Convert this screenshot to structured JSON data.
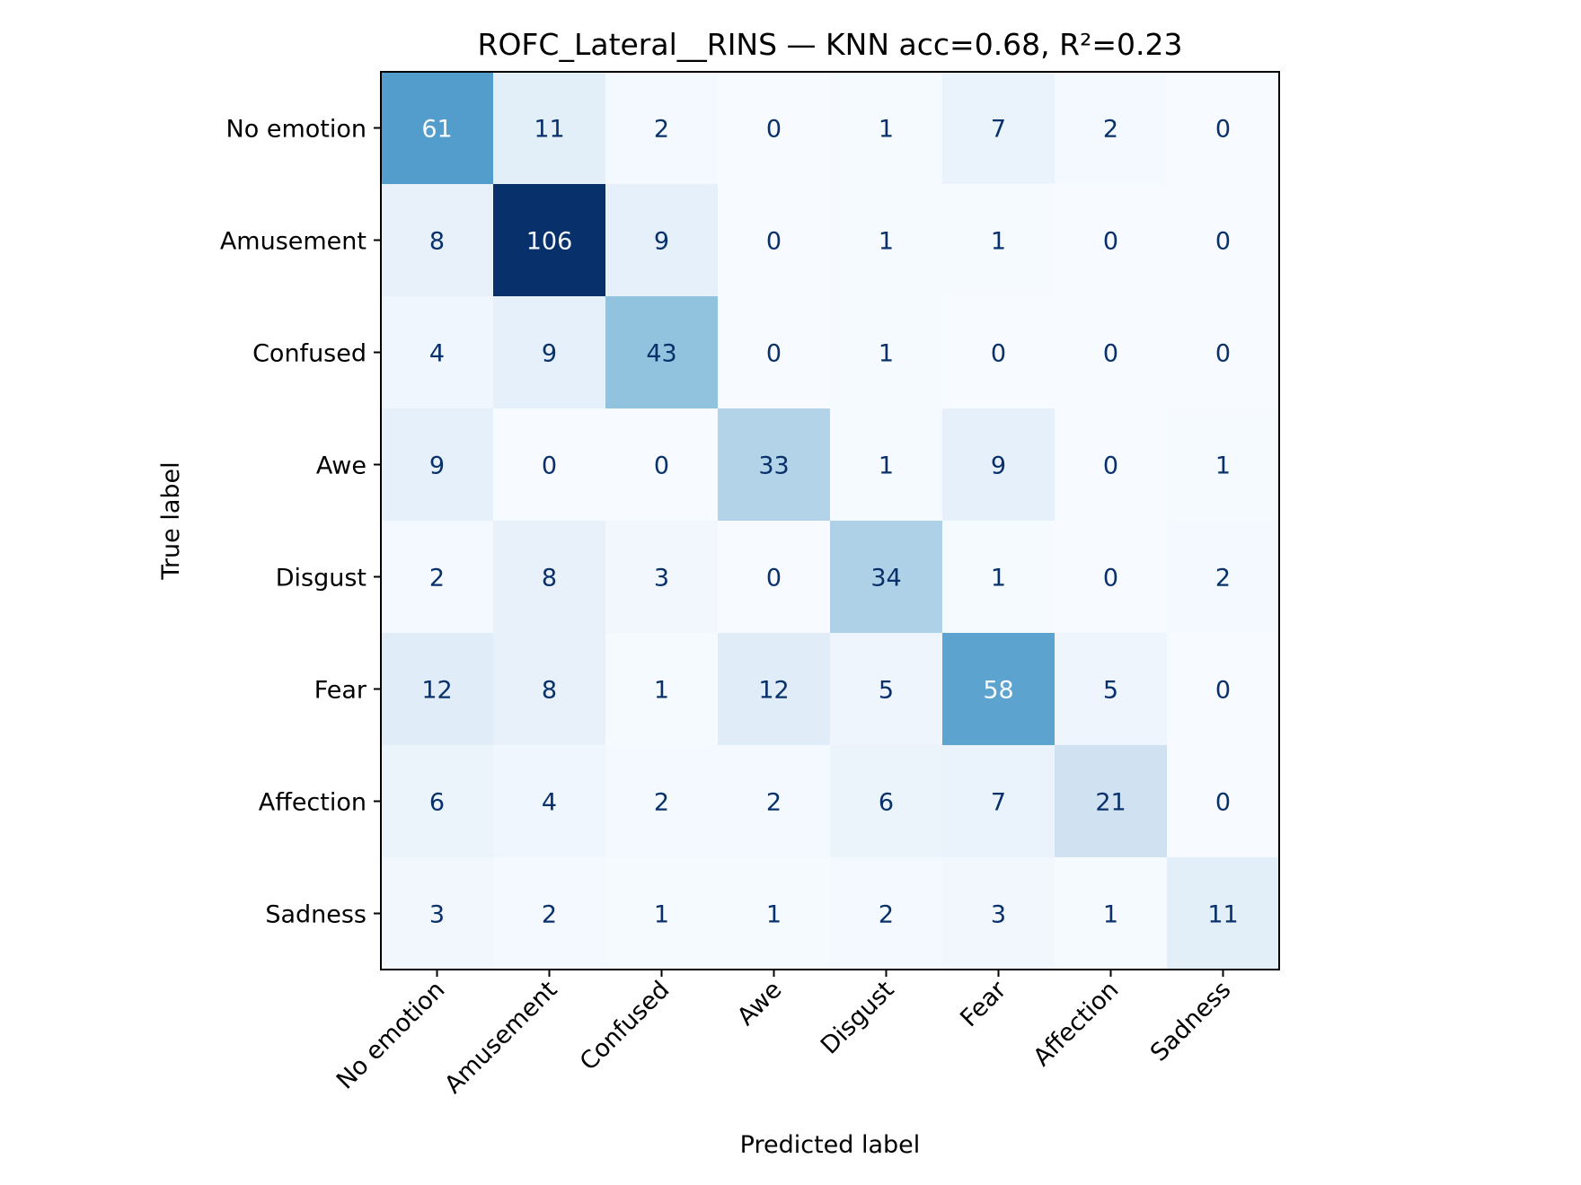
{
  "chart_data": {
    "type": "heatmap",
    "title": "ROFC_Lateral__RINS — KNN acc=0.68, R²=0.23",
    "xlabel": "Predicted label",
    "ylabel": "True label",
    "x_categories": [
      "No emotion",
      "Amusement",
      "Confused",
      "Awe",
      "Disgust",
      "Fear",
      "Affection",
      "Sadness"
    ],
    "y_categories": [
      "No emotion",
      "Amusement",
      "Confused",
      "Awe",
      "Disgust",
      "Fear",
      "Affection",
      "Sadness"
    ],
    "matrix": [
      [
        61,
        11,
        2,
        0,
        1,
        7,
        2,
        0
      ],
      [
        8,
        106,
        9,
        0,
        1,
        1,
        0,
        0
      ],
      [
        4,
        9,
        43,
        0,
        1,
        0,
        0,
        0
      ],
      [
        9,
        0,
        0,
        33,
        1,
        9,
        0,
        1
      ],
      [
        2,
        8,
        3,
        0,
        34,
        1,
        0,
        2
      ],
      [
        12,
        8,
        1,
        12,
        5,
        58,
        5,
        0
      ],
      [
        6,
        4,
        2,
        2,
        6,
        7,
        21,
        0
      ],
      [
        3,
        2,
        1,
        1,
        2,
        3,
        1,
        11
      ]
    ],
    "value_range": [
      0,
      106
    ],
    "colormap": "Blues",
    "colorbar": false,
    "grid": false,
    "colors": {
      "low": "#f7fbff",
      "high": "#08306b",
      "text_dark": "#08306b",
      "text_light": "#f7fbff"
    }
  }
}
